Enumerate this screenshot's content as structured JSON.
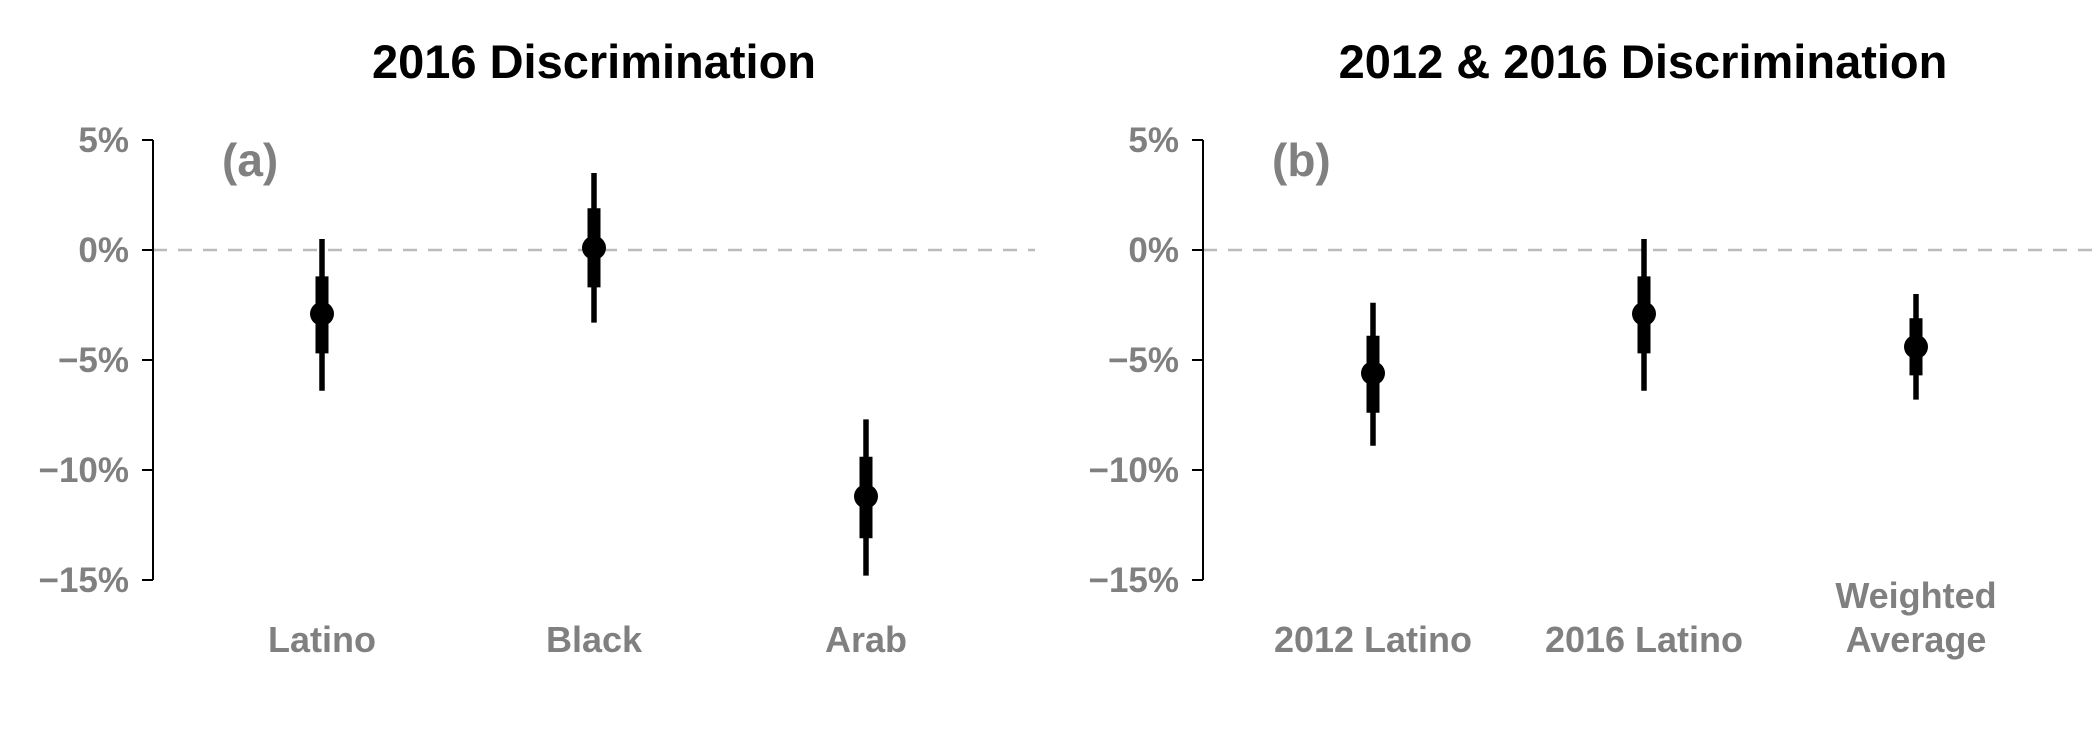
{
  "chart_data": [
    {
      "type": "errorbar",
      "title": "2016 Discrimination",
      "panel_label": "(a)",
      "ylim": [
        -15,
        5
      ],
      "yticks": [
        5,
        0,
        -5,
        -10,
        -15
      ],
      "ytick_labels": [
        "5%",
        "0%",
        "−5%",
        "−10%",
        "−15%"
      ],
      "reference_line": 0,
      "categories": [
        [
          "Latino"
        ],
        [
          "Black"
        ],
        [
          "Arab"
        ]
      ],
      "points": [
        {
          "estimate": -2.9,
          "inner": [
            -4.7,
            -1.2
          ],
          "outer": [
            -6.4,
            0.5
          ]
        },
        {
          "estimate": 0.1,
          "inner": [
            -1.7,
            1.9
          ],
          "outer": [
            -3.3,
            3.5
          ]
        },
        {
          "estimate": -11.2,
          "inner": [
            -13.1,
            -9.4
          ],
          "outer": [
            -14.8,
            -7.7
          ]
        }
      ]
    },
    {
      "type": "errorbar",
      "title": "2012 & 2016 Discrimination",
      "panel_label": "(b)",
      "ylim": [
        -15,
        5
      ],
      "yticks": [
        5,
        0,
        -5,
        -10,
        -15
      ],
      "ytick_labels": [
        "5%",
        "0%",
        "−5%",
        "−10%",
        "−15%"
      ],
      "reference_line": 0,
      "categories": [
        [
          "2012 Latino"
        ],
        [
          "2016 Latino"
        ],
        [
          "Weighted",
          "Average"
        ]
      ],
      "points": [
        {
          "estimate": -5.6,
          "inner": [
            -7.4,
            -3.9
          ],
          "outer": [
            -8.9,
            -2.4
          ]
        },
        {
          "estimate": -2.9,
          "inner": [
            -4.7,
            -1.2
          ],
          "outer": [
            -6.4,
            0.5
          ]
        },
        {
          "estimate": -4.4,
          "inner": [
            -5.7,
            -3.1
          ],
          "outer": [
            -6.8,
            -2.0
          ]
        }
      ]
    }
  ],
  "colors": {
    "marks": "#000000",
    "axis": "#000000",
    "labels": "#808080",
    "reference_line": "#bbbbbb"
  }
}
